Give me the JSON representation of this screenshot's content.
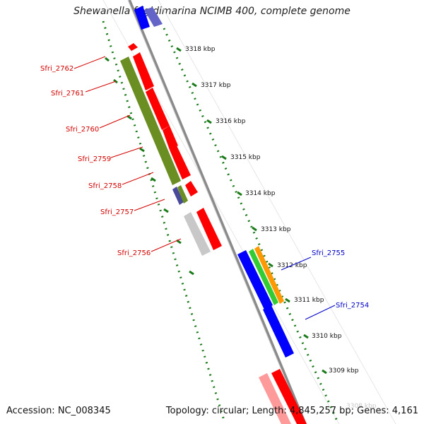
{
  "title": "Shewanella frigidimarina NCIMB 400, complete genome",
  "footer": {
    "accession": "Accession: NC_008345",
    "summary": "Topology: circular; Length: 4,845,257 bp; Genes: 4,161"
  },
  "ruler": {
    "labels": [
      "3318 kbp",
      "3317 kbp",
      "3316 kbp",
      "3315 kbp",
      "3314 kbp",
      "3313 kbp",
      "3312 kbp",
      "3311 kbp",
      "3310 kbp",
      "3309 kbp",
      "3308 kbp"
    ]
  },
  "gene_labels": {
    "left": [
      "Sfri_2762",
      "Sfri_2761",
      "Sfri_2760",
      "Sfri_2759",
      "Sfri_2758",
      "Sfri_2757",
      "Sfri_2756"
    ],
    "right": [
      "Sfri_2755",
      "Sfri_2754"
    ]
  },
  "colors": {
    "backbone": "#8a8a8a",
    "ruler_dots": "#1a7a1a",
    "label_left": "#d40000",
    "label_right": "#0000c8",
    "gene_red": "#ff0000",
    "gene_olive": "#6b8e23",
    "gene_grey": "#c8c8c8",
    "gene_blue": "#0000ff",
    "gene_green": "#33cc33",
    "gene_orange": "#ff9900",
    "gene_navy": "#4a4a9a",
    "gene_pink": "#ff9a9a"
  }
}
